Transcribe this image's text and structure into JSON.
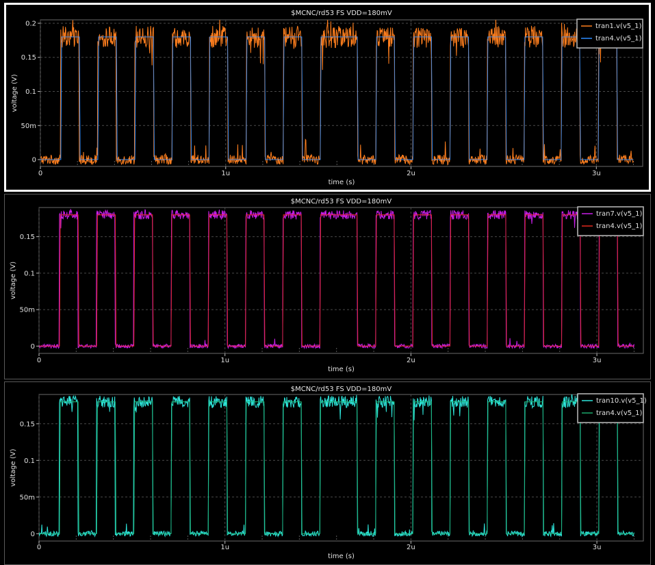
{
  "panels": [
    {
      "selected": true,
      "chart_data": {
        "type": "line",
        "title": "$MCNC/rd53 FS VDD=180mV",
        "xlabel": "time (s)",
        "ylabel": "voltage (V)",
        "xlim": [
          0,
          3.25
        ],
        "ylim": [
          -0.01,
          0.205
        ],
        "xticks": [
          0,
          1,
          2,
          3
        ],
        "xtick_labels": [
          "0",
          "1u",
          "2u",
          "3u"
        ],
        "yticks": [
          0,
          0.05,
          0.1,
          0.15,
          0.2
        ],
        "ytick_labels": [
          "0",
          "50m",
          "0.1",
          "0.15",
          "0.2"
        ],
        "grid": true,
        "legend_position": "top-right",
        "ylabel_color": "#e0e0e0",
        "series": [
          {
            "name": "tran1.v(v5_1)",
            "color": "#ff7f1e",
            "role": "noisy",
            "noise": 0.9
          },
          {
            "name": "tran4.v(v5_1)",
            "color": "#2a8cff",
            "role": "reference"
          }
        ]
      }
    },
    {
      "selected": false,
      "chart_data": {
        "type": "line",
        "title": "$MCNC/rd53 FS VDD=180mV",
        "xlabel": "time (s)",
        "ylabel": "voltage (V)",
        "xlim": [
          0,
          3.25
        ],
        "ylim": [
          -0.01,
          0.19
        ],
        "xticks": [
          0,
          1,
          2,
          3
        ],
        "xtick_labels": [
          "0",
          "1u",
          "2u",
          "3u"
        ],
        "yticks": [
          0,
          0.05,
          0.1,
          0.15
        ],
        "ytick_labels": [
          "0",
          "50m",
          "0.1",
          "0.15"
        ],
        "grid": true,
        "legend_position": "top-right",
        "ylabel_color": "#e0e0e0",
        "series": [
          {
            "name": "tran7.v(v5_1)",
            "color": "#c81ee8",
            "role": "noisy",
            "noise": 0.35
          },
          {
            "name": "tran4.v(v5_1)",
            "color": "#e0281e",
            "role": "reference"
          }
        ]
      }
    },
    {
      "selected": false,
      "chart_data": {
        "type": "line",
        "title": "$MCNC/rd53 FS VDD=180mV",
        "xlabel": "time (s)",
        "ylabel": "voltage (V)",
        "xlim": [
          0,
          3.25
        ],
        "ylim": [
          -0.01,
          0.19
        ],
        "xticks": [
          0,
          1,
          2,
          3
        ],
        "xtick_labels": [
          "0",
          "1u",
          "2u",
          "3u"
        ],
        "yticks": [
          0,
          0.05,
          0.1,
          0.15
        ],
        "ytick_labels": [
          "0",
          "50m",
          "0.1",
          "0.15"
        ],
        "grid": true,
        "legend_position": "top-right",
        "ylabel_color": "#d8d800",
        "series": [
          {
            "name": "tran10.v(v5_1)",
            "color": "#2ee6dc",
            "role": "noisy",
            "noise": 0.45
          },
          {
            "name": "tran4.v(v5_1)",
            "color": "#1aa86a",
            "role": "reference"
          }
        ]
      }
    }
  ],
  "signal": {
    "high_level": 0.18,
    "low_level": 0,
    "high_intervals_us": [
      [
        0.11,
        0.21
      ],
      [
        0.31,
        0.41
      ],
      [
        0.51,
        0.61
      ],
      [
        0.71,
        0.81
      ],
      [
        0.91,
        1.01
      ],
      [
        1.11,
        1.21
      ],
      [
        1.31,
        1.41
      ],
      [
        1.51,
        1.71
      ],
      [
        1.81,
        1.91
      ],
      [
        2.01,
        2.11
      ],
      [
        2.21,
        2.31
      ],
      [
        2.41,
        2.51
      ],
      [
        2.61,
        2.71
      ],
      [
        2.81,
        2.91
      ],
      [
        3.01,
        3.11
      ]
    ],
    "end_us": 3.2
  }
}
